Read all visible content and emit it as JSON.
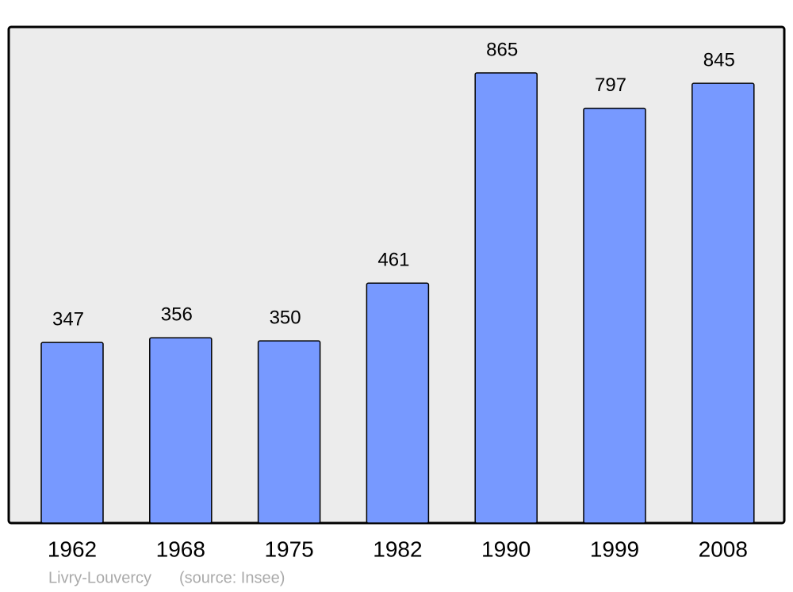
{
  "chart_data": {
    "type": "bar",
    "title": "Livry-Louvercy",
    "source": "(source: Insee)",
    "categories": [
      "1962",
      "1968",
      "1975",
      "1982",
      "1990",
      "1999",
      "2008"
    ],
    "values": [
      347,
      356,
      350,
      461,
      865,
      797,
      845
    ],
    "color": "#7799ff"
  }
}
